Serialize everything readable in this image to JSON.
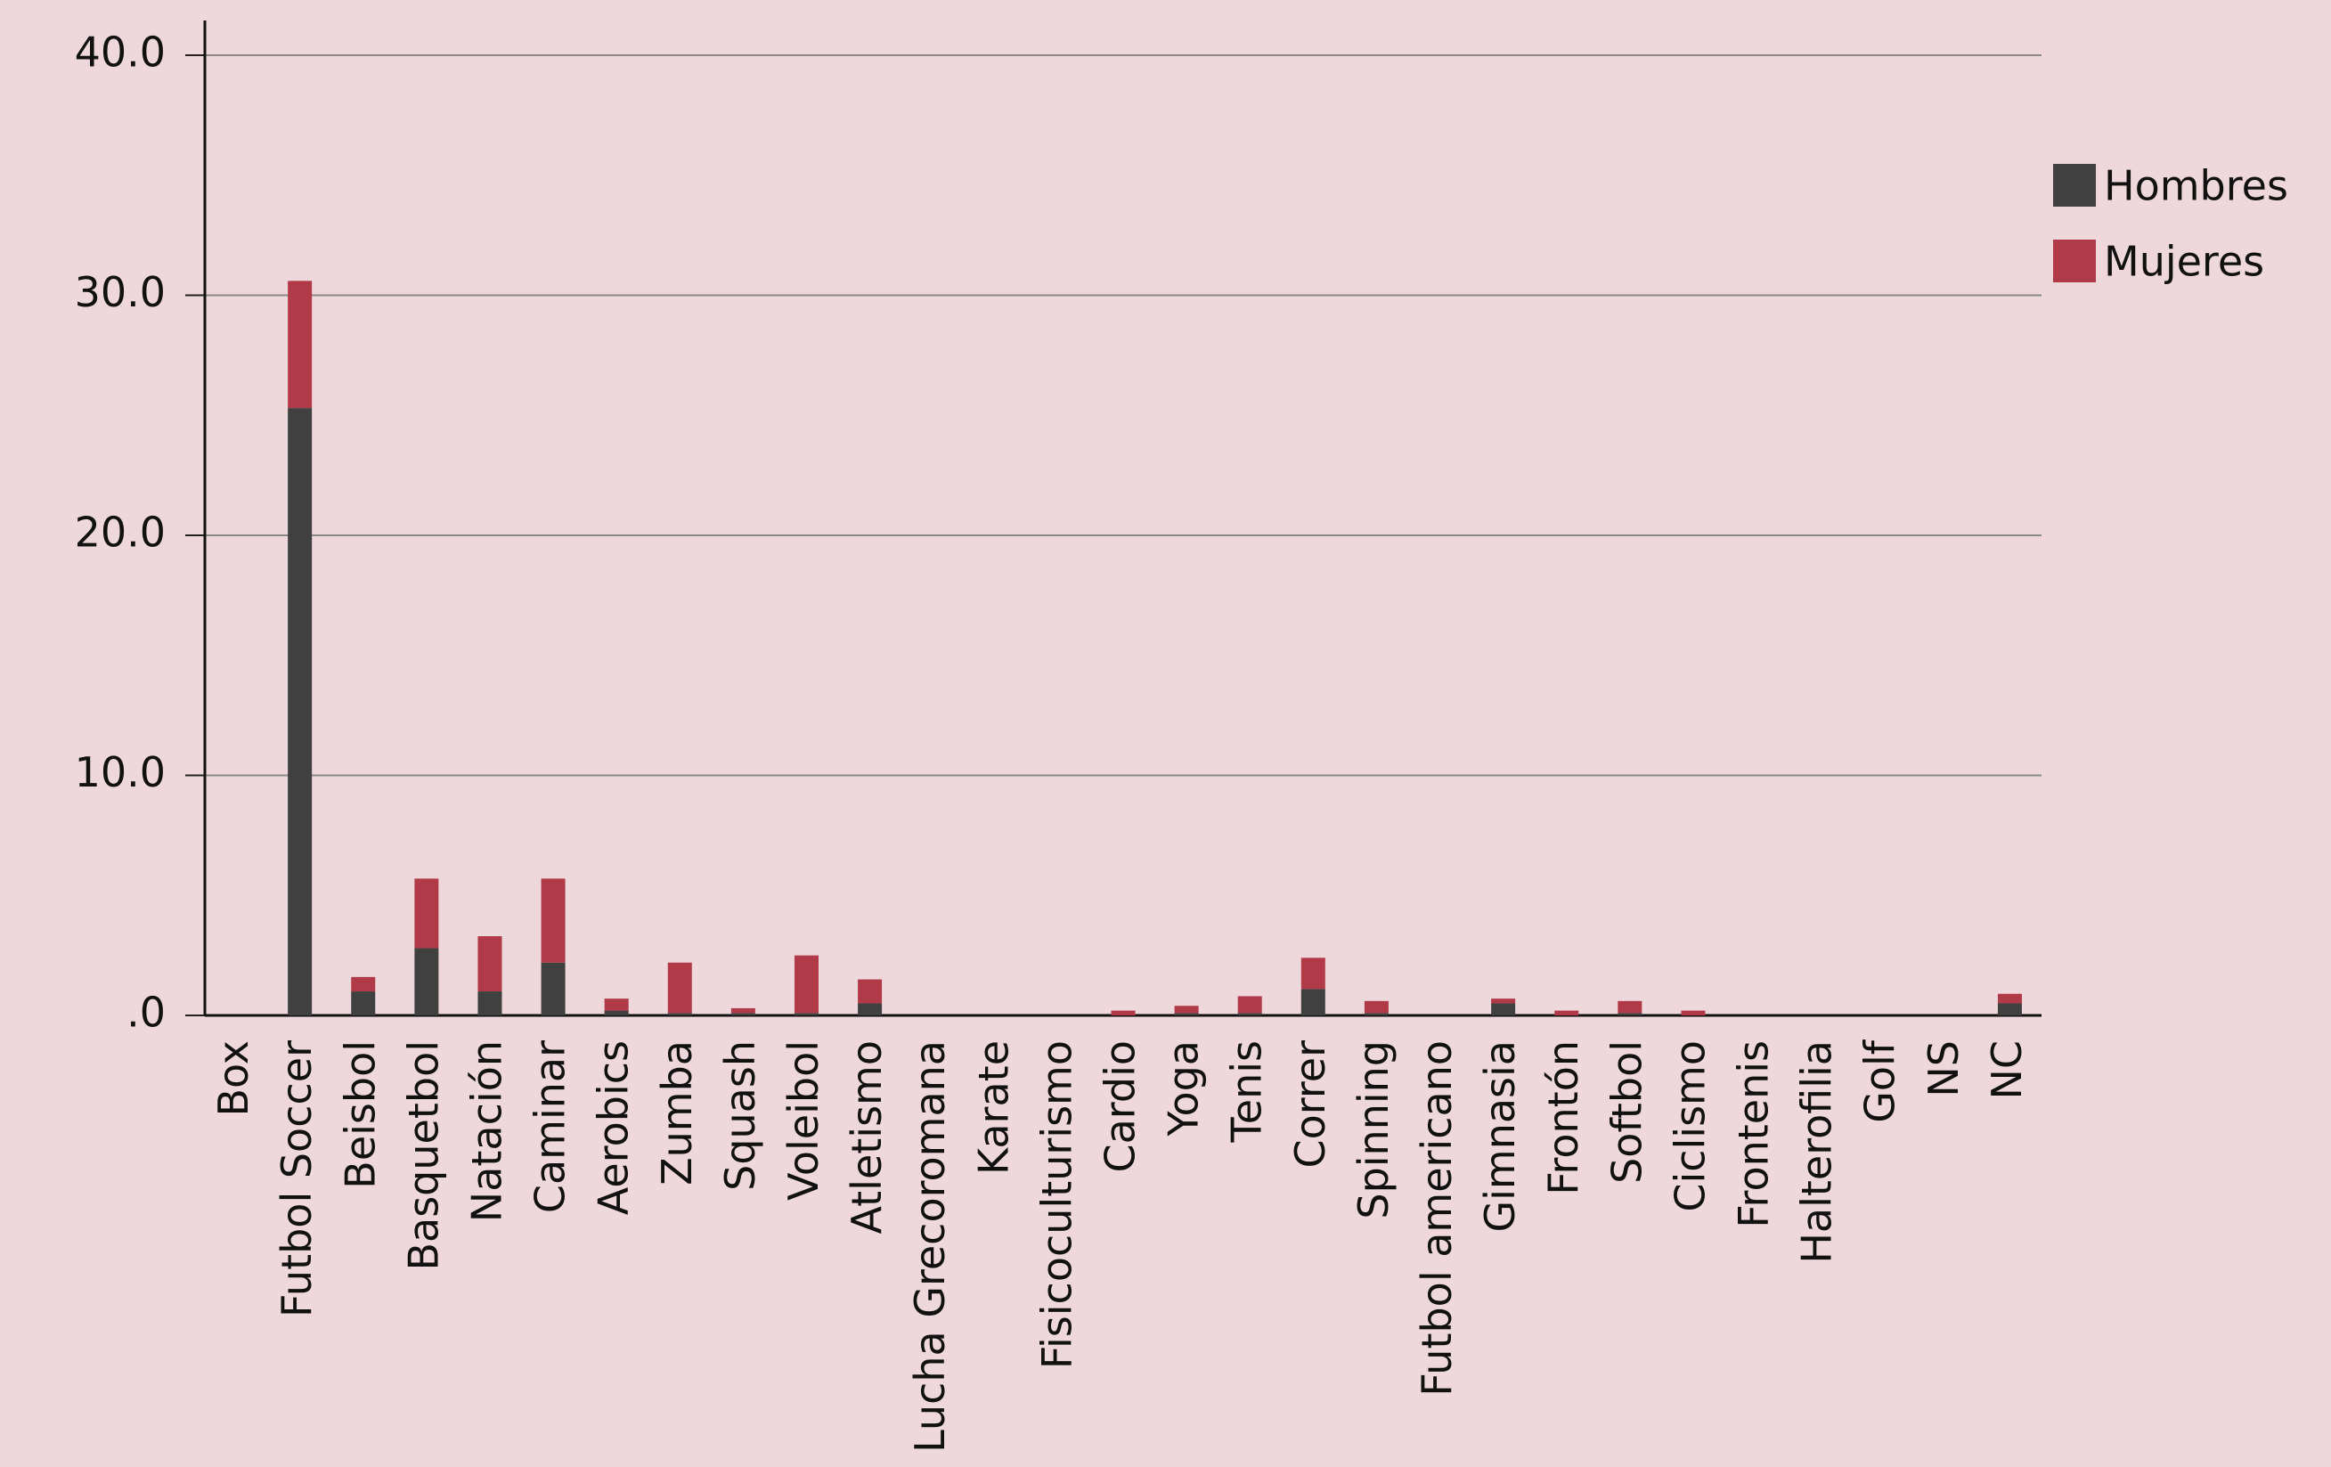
{
  "chart_data": {
    "type": "stacked_bar",
    "categories": [
      "Box",
      "Futbol Soccer",
      "Beisbol",
      "Basquetbol",
      "Natación",
      "Caminar",
      "Aerobics",
      "Zumba",
      "Squash",
      "Voleibol",
      "Atletismo",
      "Lucha Grecoromana",
      "Karate",
      "Fisicoculturismo",
      "Cardio",
      "Yoga",
      "Tenis",
      "Correr",
      "Spinning",
      "Futbol americano",
      "Gimnasia",
      "Frontón",
      "Softbol",
      "Ciclismo",
      "Frontenis",
      "Halterofilia",
      "Golf",
      "NS",
      "NC"
    ],
    "series": [
      {
        "name": "Hombres",
        "color": "#404040",
        "values": [
          0,
          25.3,
          1.0,
          2.8,
          1.0,
          2.2,
          0.2,
          0.1,
          0.1,
          0.1,
          0.5,
          0,
          0,
          0,
          0,
          0.1,
          0.1,
          1.1,
          0.1,
          0,
          0.5,
          0,
          0.1,
          0,
          0,
          0,
          0,
          0,
          0.5
        ]
      },
      {
        "name": "Mujeres",
        "color": "#b03a48",
        "values": [
          0,
          5.3,
          0.6,
          2.9,
          2.3,
          3.5,
          0.5,
          2.1,
          0.2,
          2.4,
          1.0,
          0,
          0,
          0,
          0.2,
          0.3,
          0.7,
          1.3,
          0.5,
          0,
          0.2,
          0.2,
          0.5,
          0.2,
          0,
          0,
          0,
          0,
          0.4
        ]
      }
    ],
    "ylim": [
      0,
      40
    ],
    "yticks": [
      {
        "value": 0,
        "label": ".0"
      },
      {
        "value": 10,
        "label": "10.0"
      },
      {
        "value": 20,
        "label": "20.0"
      },
      {
        "value": 30,
        "label": "30.0"
      },
      {
        "value": 40,
        "label": "40.0"
      }
    ],
    "grid": true,
    "legend": "right"
  }
}
